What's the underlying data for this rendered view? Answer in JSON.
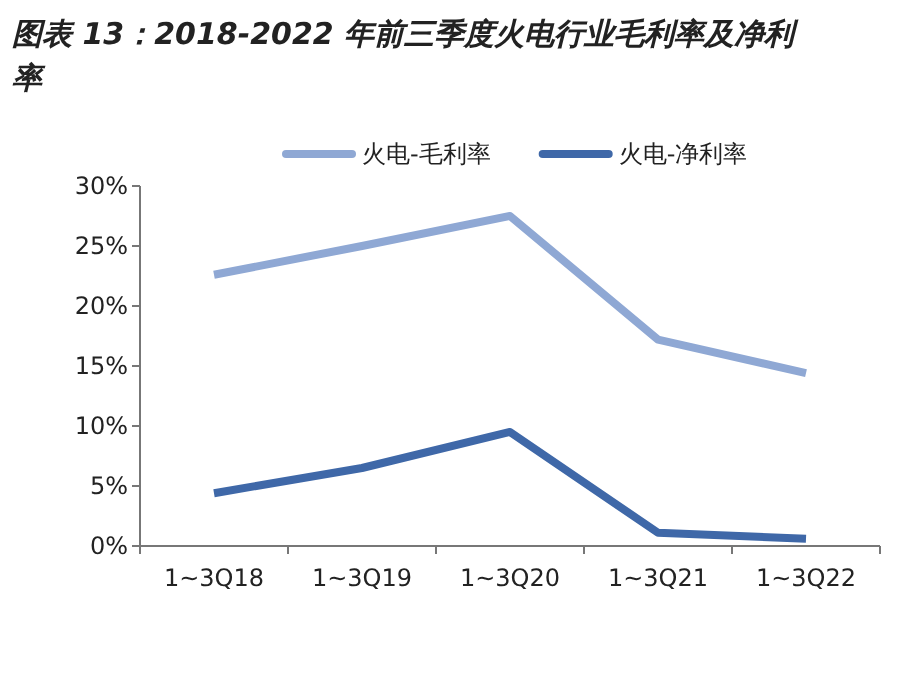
{
  "chart_data": {
    "type": "line",
    "title": "图表 13：2018-2022 年前三季度火电行业毛利率及净利率",
    "categories": [
      "1~3Q18",
      "1~3Q19",
      "1~3Q20",
      "1~3Q21",
      "1~3Q22"
    ],
    "series": [
      {
        "name": "火电-毛利率",
        "color": "#8fa8d4",
        "values": [
          22.6,
          25.0,
          27.5,
          17.2,
          14.4
        ]
      },
      {
        "name": "火电-净利率",
        "color": "#3f68a8",
        "values": [
          4.4,
          6.5,
          9.5,
          1.1,
          0.6
        ]
      }
    ],
    "ylim": [
      0,
      30
    ],
    "yticks": [
      {
        "value": 0,
        "label": "0%"
      },
      {
        "value": 5,
        "label": "5%"
      },
      {
        "value": 10,
        "label": "10%"
      },
      {
        "value": 15,
        "label": "15%"
      },
      {
        "value": 20,
        "label": "20%"
      },
      {
        "value": 25,
        "label": "25%"
      },
      {
        "value": 30,
        "label": "30%"
      }
    ],
    "grid": false,
    "legend": "top",
    "marker": "none",
    "line_style": "solid"
  }
}
